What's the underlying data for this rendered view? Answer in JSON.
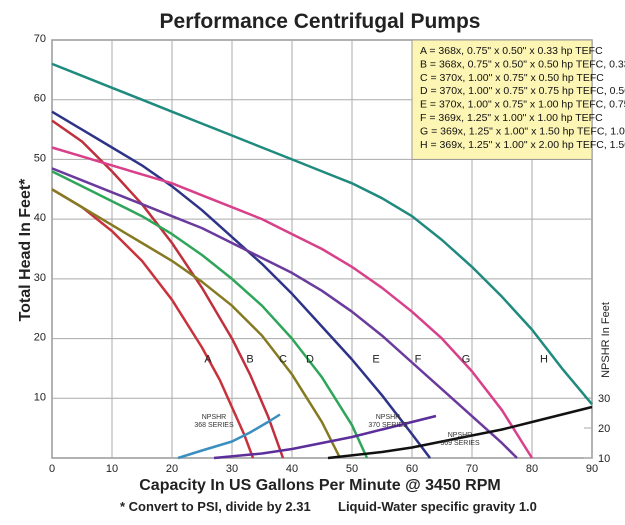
{
  "chart_data": {
    "type": "line",
    "title": "Performance Centrifugal Pumps",
    "xlabel": "Capacity In US Gallons Per Minute @ 3450 RPM",
    "ylabel": "Total Head In Feet*",
    "ylabel_right": "NPSHR In Feet",
    "footnote_left": "* Convert to PSI, divide by 2.31",
    "footnote_right": "Liquid-Water specific gravity 1.0",
    "xlim": [
      0,
      90
    ],
    "ylim": [
      0,
      70
    ],
    "ylim_right": [
      10,
      40
    ],
    "grid": true,
    "x_ticks": [
      "0",
      "10",
      "20",
      "30",
      "40",
      "50",
      "60",
      "70",
      "80",
      "90"
    ],
    "y_ticks": [
      "10",
      "20",
      "30",
      "40",
      "50",
      "60",
      "70"
    ],
    "y_ticks_right": [
      "10",
      "20",
      "30"
    ],
    "legend_position": "top-right",
    "legend": [
      "A = 368x, 0.75\" x 0.50\" x 0.33 hp TEFC",
      "B = 368x, 0.75\" x 0.50\" x 0.50 hp TEFC, 0.33 hp ODP",
      "C = 370x, 1.00\" x 0.75\" x 0.50 hp TEFC",
      "D = 370x, 1.00\" x 0.75\" x 0.75 hp TEFC, 0.50 hp ODP",
      "E = 370x, 1.00\" x 0.75\" x 1.00 hp TEFC, 0.75 hp ODP",
      "F = 369x, 1.25\" x 1.00\" x 1.00 hp TEFC",
      "G = 369x, 1.25\" x 1.00\" x 1.50 hp TEFC, 1.00 hp ODP",
      "H = 369x, 1.25\" x 1.00\" x 2.00 hp TEFC, 1.50 hp ODP"
    ],
    "series": [
      {
        "name": "A",
        "color": "#c8323c",
        "label_at": [
          26,
          16
        ],
        "points": [
          [
            0,
            45
          ],
          [
            5,
            42
          ],
          [
            10,
            38
          ],
          [
            15,
            33
          ],
          [
            20,
            26.5
          ],
          [
            25,
            18.5
          ],
          [
            28,
            13
          ],
          [
            30,
            8.5
          ],
          [
            32,
            4
          ],
          [
            33.5,
            0
          ]
        ]
      },
      {
        "name": "B",
        "color": "#c0303c",
        "label_at": [
          33,
          16
        ],
        "points": [
          [
            0,
            56.5
          ],
          [
            5,
            53
          ],
          [
            10,
            48
          ],
          [
            15,
            42.5
          ],
          [
            20,
            36
          ],
          [
            25,
            28.5
          ],
          [
            30,
            20
          ],
          [
            33,
            14
          ],
          [
            36,
            7
          ],
          [
            38.5,
            0
          ]
        ]
      },
      {
        "name": "C",
        "color": "#857a22",
        "label_at": [
          38.5,
          16
        ],
        "points": [
          [
            0,
            45
          ],
          [
            5,
            42
          ],
          [
            10,
            39
          ],
          [
            15,
            36
          ],
          [
            20,
            33
          ],
          [
            25,
            29.5
          ],
          [
            30,
            25.5
          ],
          [
            35,
            20.5
          ],
          [
            40,
            14
          ],
          [
            45,
            6
          ],
          [
            48,
            0
          ]
        ]
      },
      {
        "name": "D",
        "color": "#2fa55a",
        "label_at": [
          43,
          16
        ],
        "points": [
          [
            0,
            48
          ],
          [
            5,
            45.5
          ],
          [
            10,
            43
          ],
          [
            15,
            40.5
          ],
          [
            20,
            37.5
          ],
          [
            25,
            34
          ],
          [
            30,
            30
          ],
          [
            35,
            25.5
          ],
          [
            40,
            20
          ],
          [
            45,
            13.5
          ],
          [
            50,
            5.5
          ],
          [
            52.5,
            0
          ]
        ]
      },
      {
        "name": "E",
        "color": "#2e3388",
        "label_at": [
          54,
          16
        ],
        "points": [
          [
            0,
            58
          ],
          [
            5,
            55
          ],
          [
            10,
            52
          ],
          [
            15,
            49
          ],
          [
            20,
            45.5
          ],
          [
            25,
            41.5
          ],
          [
            30,
            37
          ],
          [
            35,
            32.5
          ],
          [
            40,
            27.5
          ],
          [
            45,
            22
          ],
          [
            50,
            16.5
          ],
          [
            55,
            10.5
          ],
          [
            60,
            4
          ],
          [
            63,
            0
          ]
        ]
      },
      {
        "name": "F",
        "color": "#6a3a9c",
        "label_at": [
          61,
          16
        ],
        "points": [
          [
            0,
            48.5
          ],
          [
            5,
            46.5
          ],
          [
            10,
            44.5
          ],
          [
            15,
            42.5
          ],
          [
            20,
            40.5
          ],
          [
            25,
            38.5
          ],
          [
            30,
            36
          ],
          [
            35,
            33.5
          ],
          [
            40,
            31
          ],
          [
            45,
            28
          ],
          [
            50,
            24.5
          ],
          [
            55,
            20.5
          ],
          [
            60,
            16
          ],
          [
            65,
            11.5
          ],
          [
            70,
            7
          ],
          [
            75,
            2.5
          ],
          [
            77.5,
            0
          ]
        ]
      },
      {
        "name": "G",
        "color": "#d9408a",
        "label_at": [
          69,
          16
        ],
        "points": [
          [
            0,
            52
          ],
          [
            5,
            50.5
          ],
          [
            10,
            49
          ],
          [
            15,
            47.5
          ],
          [
            20,
            46
          ],
          [
            25,
            44
          ],
          [
            30,
            42
          ],
          [
            35,
            40
          ],
          [
            40,
            37.5
          ],
          [
            45,
            35
          ],
          [
            50,
            32
          ],
          [
            55,
            28.5
          ],
          [
            60,
            24.5
          ],
          [
            65,
            20
          ],
          [
            70,
            14.5
          ],
          [
            75,
            8
          ],
          [
            80,
            0
          ]
        ]
      },
      {
        "name": "H",
        "color": "#1f8a7e",
        "label_at": [
          82,
          16
        ],
        "points": [
          [
            0,
            66
          ],
          [
            5,
            64
          ],
          [
            10,
            62
          ],
          [
            15,
            60
          ],
          [
            20,
            58
          ],
          [
            25,
            56
          ],
          [
            30,
            54
          ],
          [
            35,
            52
          ],
          [
            40,
            50
          ],
          [
            45,
            48
          ],
          [
            50,
            46
          ],
          [
            55,
            43.5
          ],
          [
            60,
            40.5
          ],
          [
            65,
            36.5
          ],
          [
            70,
            32
          ],
          [
            75,
            27
          ],
          [
            80,
            21.5
          ],
          [
            85,
            15
          ],
          [
            90,
            9
          ]
        ]
      }
    ],
    "npshr_series": [
      {
        "name": "NPSHR 368 SERIES",
        "label_lines": [
          "NPSHR",
          "368 SERIES"
        ],
        "color": "#3a8fc0",
        "label_at": [
          27,
          6.5
        ],
        "points": [
          [
            21,
            10
          ],
          [
            25,
            12.5
          ],
          [
            30,
            15.5
          ],
          [
            33,
            18.5
          ],
          [
            36,
            22
          ],
          [
            38,
            24.5
          ]
        ]
      },
      {
        "name": "NPSHR 370 SERIES",
        "label_lines": [
          "NPSHR",
          "370 SERIES"
        ],
        "color": "#5b2e9a",
        "label_at": [
          56,
          6.5
        ],
        "points": [
          [
            27,
            10
          ],
          [
            35,
            11.5
          ],
          [
            40,
            13
          ],
          [
            45,
            15
          ],
          [
            50,
            17
          ],
          [
            55,
            19.5
          ],
          [
            60,
            22
          ],
          [
            64,
            24
          ]
        ]
      },
      {
        "name": "NPSHR 369 SERIES",
        "label_lines": [
          "NPSHR",
          "369 SERIES"
        ],
        "color": "#111111",
        "label_at": [
          68,
          3.5
        ],
        "points": [
          [
            46,
            10
          ],
          [
            55,
            12
          ],
          [
            60,
            13.5
          ],
          [
            65,
            15.5
          ],
          [
            70,
            17.5
          ],
          [
            75,
            19.5
          ],
          [
            80,
            22
          ],
          [
            85,
            24.5
          ],
          [
            90,
            27
          ]
        ]
      }
    ]
  }
}
